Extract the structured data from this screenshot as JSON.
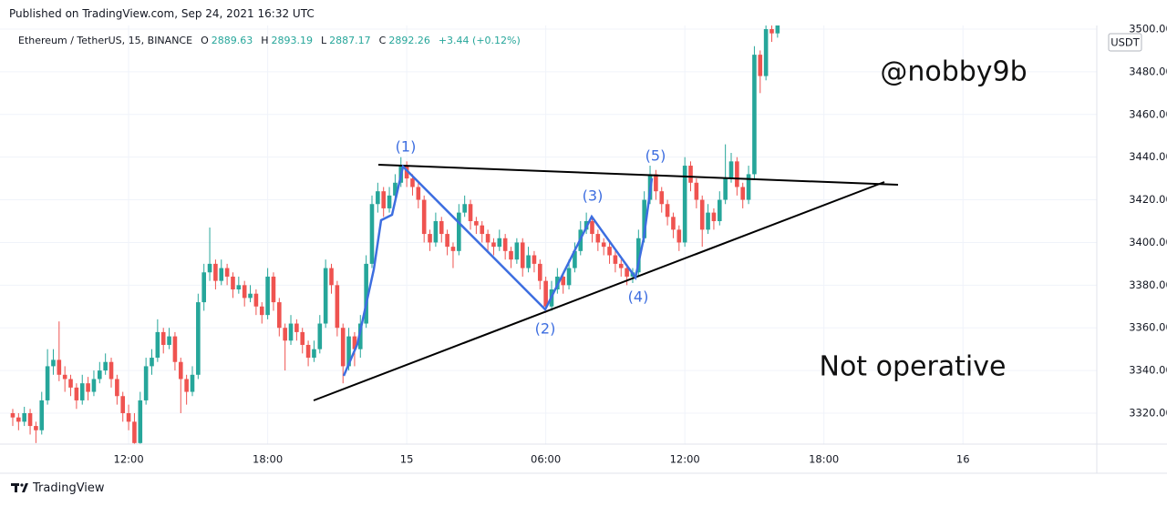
{
  "published": "Published on TradingView.com, Sep 24, 2021 16:32 UTC",
  "branding": "TradingView",
  "chart_data": {
    "type": "candlestick",
    "title": "Ethereum / TetherUS, 15, BINANCE",
    "ohlc_legend": [
      {
        "label": "O",
        "value": "2889.63"
      },
      {
        "label": "H",
        "value": "2893.19"
      },
      {
        "label": "L",
        "value": "2887.17"
      },
      {
        "label": "C",
        "value": "2892.26"
      }
    ],
    "change": "+3.44 (+0.12%)",
    "currency": "USDT",
    "up_color": "#26a69a",
    "down_color": "#ef5350",
    "grid": true,
    "xlim": [
      -2.2,
      187.1
    ],
    "xticks": [
      {
        "value": 20,
        "label": "12:00"
      },
      {
        "value": 44,
        "label": "18:00"
      },
      {
        "value": 68,
        "label": "15"
      },
      {
        "value": 92,
        "label": "06:00"
      },
      {
        "value": 116,
        "label": "12:00"
      },
      {
        "value": 140,
        "label": "18:00"
      },
      {
        "value": 164,
        "label": "16"
      }
    ],
    "ylim": [
      3305.5,
      3501.7
    ],
    "yticks": [
      {
        "value": 3320,
        "label": "3320.00"
      },
      {
        "value": 3340,
        "label": "3340.00"
      },
      {
        "value": 3360,
        "label": "3360.00"
      },
      {
        "value": 3380,
        "label": "3380.00"
      },
      {
        "value": 3400,
        "label": "3400.00"
      },
      {
        "value": 3420,
        "label": "3420.00"
      },
      {
        "value": 3440,
        "label": "3440.00"
      },
      {
        "value": 3460,
        "label": "3460.00"
      },
      {
        "value": 3480,
        "label": "3480.00"
      },
      {
        "value": 3500,
        "label": "3500.00"
      }
    ],
    "annotations": [
      "(1)",
      "(2)",
      "(3)",
      "(4)",
      "(5)",
      "@nobby9b",
      "Not operative"
    ],
    "open": [
      3320,
      3318,
      3316,
      3320,
      3314,
      3312,
      3326,
      3342,
      3345,
      3338,
      3336,
      3332,
      3326,
      3334,
      3330,
      3336,
      3340,
      3344,
      3336,
      3328,
      3320,
      3316,
      3306,
      3326,
      3342,
      3346,
      3358,
      3352,
      3356,
      3344,
      3336,
      3330,
      3338,
      3372,
      3386,
      3390,
      3382,
      3388,
      3384,
      3378,
      3380,
      3374,
      3376,
      3370,
      3366,
      3384,
      3372,
      3360,
      3354,
      3362,
      3358,
      3352,
      3346,
      3350,
      3362,
      3388,
      3380,
      3360,
      3342,
      3356,
      3350,
      3362,
      3390,
      3418,
      3424,
      3416,
      3422,
      3428,
      3436,
      3430,
      3426,
      3420,
      3404,
      3400,
      3410,
      3404,
      3398,
      3396,
      3414,
      3418,
      3410,
      3408,
      3404,
      3400,
      3398,
      3402,
      3396,
      3392,
      3400,
      3388,
      3394,
      3390,
      3382,
      3370,
      3378,
      3384,
      3380,
      3388,
      3396,
      3406,
      3410,
      3404,
      3400,
      3398,
      3394,
      3390,
      3388,
      3384,
      3386,
      3402,
      3420,
      3432,
      3424,
      3418,
      3412,
      3406,
      3400,
      3436,
      3428,
      3420,
      3406,
      3414,
      3410,
      3420,
      3430,
      3438,
      3426,
      3420,
      3432,
      3488,
      3478,
      3500,
      3498
    ],
    "high": [
      3322,
      3320,
      3323,
      3322,
      3316,
      3330,
      3350,
      3350,
      3363,
      3342,
      3338,
      3334,
      3338,
      3337,
      3340,
      3344,
      3348,
      3346,
      3338,
      3330,
      3324,
      3320,
      3330,
      3346,
      3350,
      3364,
      3360,
      3360,
      3358,
      3346,
      3338,
      3342,
      3376,
      3390,
      3407,
      3392,
      3392,
      3390,
      3386,
      3384,
      3382,
      3380,
      3378,
      3372,
      3388,
      3386,
      3374,
      3362,
      3366,
      3364,
      3360,
      3354,
      3354,
      3366,
      3392,
      3390,
      3382,
      3362,
      3360,
      3358,
      3366,
      3394,
      3422,
      3428,
      3426,
      3426,
      3432,
      3440,
      3438,
      3432,
      3428,
      3422,
      3406,
      3414,
      3412,
      3406,
      3400,
      3418,
      3422,
      3420,
      3412,
      3410,
      3406,
      3402,
      3406,
      3404,
      3398,
      3402,
      3402,
      3398,
      3396,
      3392,
      3384,
      3382,
      3388,
      3386,
      3392,
      3400,
      3410,
      3414,
      3412,
      3406,
      3402,
      3400,
      3396,
      3392,
      3390,
      3388,
      3406,
      3424,
      3436,
      3434,
      3426,
      3420,
      3414,
      3408,
      3440,
      3438,
      3430,
      3422,
      3418,
      3416,
      3424,
      3446,
      3442,
      3440,
      3428,
      3436,
      3492,
      3490,
      3504,
      3504,
      3504
    ],
    "low": [
      3314,
      3312,
      3314,
      3310,
      3306,
      3310,
      3324,
      3338,
      3335,
      3330,
      3328,
      3322,
      3324,
      3326,
      3328,
      3334,
      3338,
      3332,
      3324,
      3316,
      3312,
      3300,
      3304,
      3324,
      3338,
      3344,
      3348,
      3350,
      3340,
      3320,
      3324,
      3328,
      3336,
      3368,
      3382,
      3378,
      3380,
      3380,
      3374,
      3376,
      3370,
      3372,
      3366,
      3362,
      3364,
      3368,
      3356,
      3340,
      3352,
      3354,
      3348,
      3342,
      3344,
      3348,
      3360,
      3376,
      3356,
      3334,
      3340,
      3342,
      3346,
      3360,
      3388,
      3414,
      3412,
      3414,
      3420,
      3426,
      3426,
      3422,
      3416,
      3400,
      3396,
      3398,
      3400,
      3394,
      3388,
      3394,
      3412,
      3406,
      3404,
      3400,
      3396,
      3394,
      3396,
      3392,
      3388,
      3390,
      3384,
      3386,
      3386,
      3378,
      3367,
      3368,
      3376,
      3376,
      3378,
      3386,
      3394,
      3404,
      3400,
      3396,
      3394,
      3390,
      3386,
      3384,
      3380,
      3381,
      3384,
      3400,
      3418,
      3420,
      3414,
      3408,
      3402,
      3396,
      3398,
      3424,
      3416,
      3398,
      3404,
      3406,
      3408,
      3418,
      3428,
      3422,
      3416,
      3418,
      3430,
      3470,
      3476,
      3494,
      3496
    ],
    "close": [
      3318,
      3316,
      3320,
      3314,
      3312,
      3326,
      3342,
      3345,
      3338,
      3336,
      3332,
      3326,
      3334,
      3330,
      3336,
      3340,
      3344,
      3336,
      3328,
      3320,
      3316,
      3306,
      3326,
      3342,
      3346,
      3358,
      3352,
      3356,
      3344,
      3336,
      3330,
      3338,
      3372,
      3386,
      3390,
      3382,
      3388,
      3384,
      3378,
      3380,
      3374,
      3376,
      3370,
      3366,
      3384,
      3372,
      3360,
      3354,
      3362,
      3358,
      3352,
      3346,
      3350,
      3362,
      3388,
      3380,
      3360,
      3342,
      3356,
      3350,
      3362,
      3390,
      3418,
      3424,
      3416,
      3422,
      3428,
      3436,
      3430,
      3426,
      3420,
      3404,
      3400,
      3410,
      3404,
      3398,
      3396,
      3414,
      3418,
      3410,
      3408,
      3404,
      3400,
      3398,
      3402,
      3396,
      3392,
      3400,
      3388,
      3394,
      3390,
      3382,
      3370,
      3378,
      3384,
      3380,
      3388,
      3396,
      3406,
      3410,
      3404,
      3400,
      3398,
      3394,
      3390,
      3388,
      3384,
      3386,
      3402,
      3420,
      3432,
      3424,
      3418,
      3412,
      3406,
      3400,
      3436,
      3428,
      3420,
      3406,
      3414,
      3410,
      3420,
      3430,
      3438,
      3426,
      3420,
      3432,
      3488,
      3478,
      3500,
      3498,
      3502
    ]
  }
}
